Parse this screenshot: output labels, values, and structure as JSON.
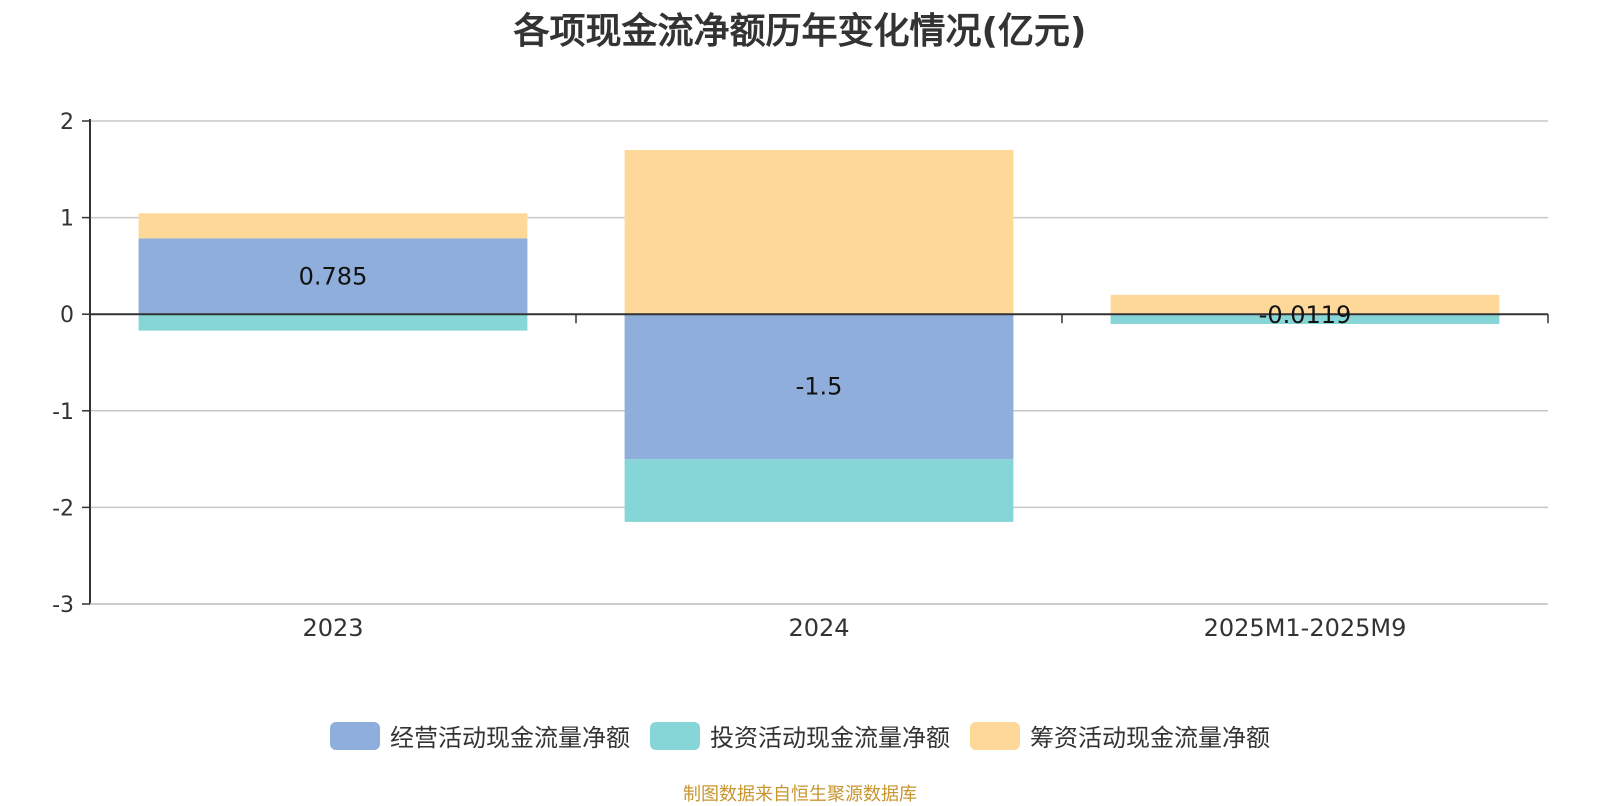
{
  "chart_data": {
    "type": "bar",
    "stacked": true,
    "title": "各项现金流净额历年变化情况(亿元)",
    "xlabel": "",
    "ylabel": "",
    "ylim": [
      -3,
      2
    ],
    "yticks": [
      2,
      1,
      0,
      -1,
      -2,
      -3
    ],
    "categories": [
      "2023",
      "2024",
      "2025M1-2025M9"
    ],
    "series": [
      {
        "name": "经营活动现金流量净额",
        "values": [
          0.785,
          -1.5,
          -0.0119
        ],
        "labels": [
          "0.785",
          "-1.5",
          "-0.0119"
        ],
        "color": "#8faedb"
      },
      {
        "name": "投资活动现金流量净额",
        "values": [
          -0.17,
          -0.65,
          -0.09
        ],
        "color": "#86d6d8"
      },
      {
        "name": "筹资活动现金流量净额",
        "values": [
          0.26,
          1.7,
          0.2
        ],
        "color": "#fdd899"
      }
    ],
    "grid": true,
    "legend_position": "bottom-center"
  },
  "source": {
    "text": "制图数据来自恒生聚源数据库",
    "color": "#c9952e"
  }
}
